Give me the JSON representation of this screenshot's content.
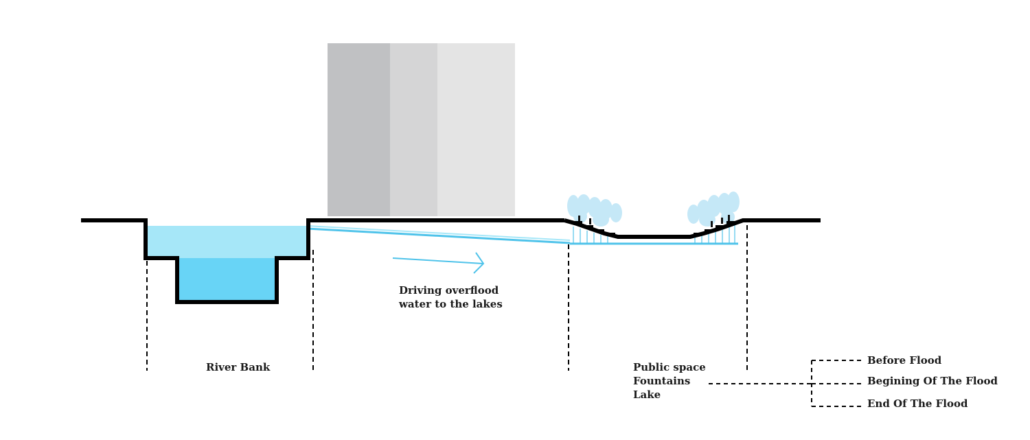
{
  "labels": {
    "river_bank": "River Bank",
    "overflood_line1": "Driving overflood",
    "overflood_line2": "water to the lakes",
    "public_space": "Public space",
    "fountains": "Fountains",
    "lake": "Lake"
  },
  "legend": {
    "items": [
      {
        "label": "Before Flood"
      },
      {
        "label": "Begining Of The Flood"
      },
      {
        "label": "End Of The Flood"
      }
    ]
  },
  "colors": {
    "ground": "#000000",
    "water_light": "#a6e7f8",
    "water_deep": "#68d4f6",
    "flow_line": "#4fc3ea",
    "building_dark": "#c0c1c3",
    "building_mid": "#d5d5d6",
    "building_light": "#e4e4e4",
    "fountain": "#bfe6f7"
  }
}
